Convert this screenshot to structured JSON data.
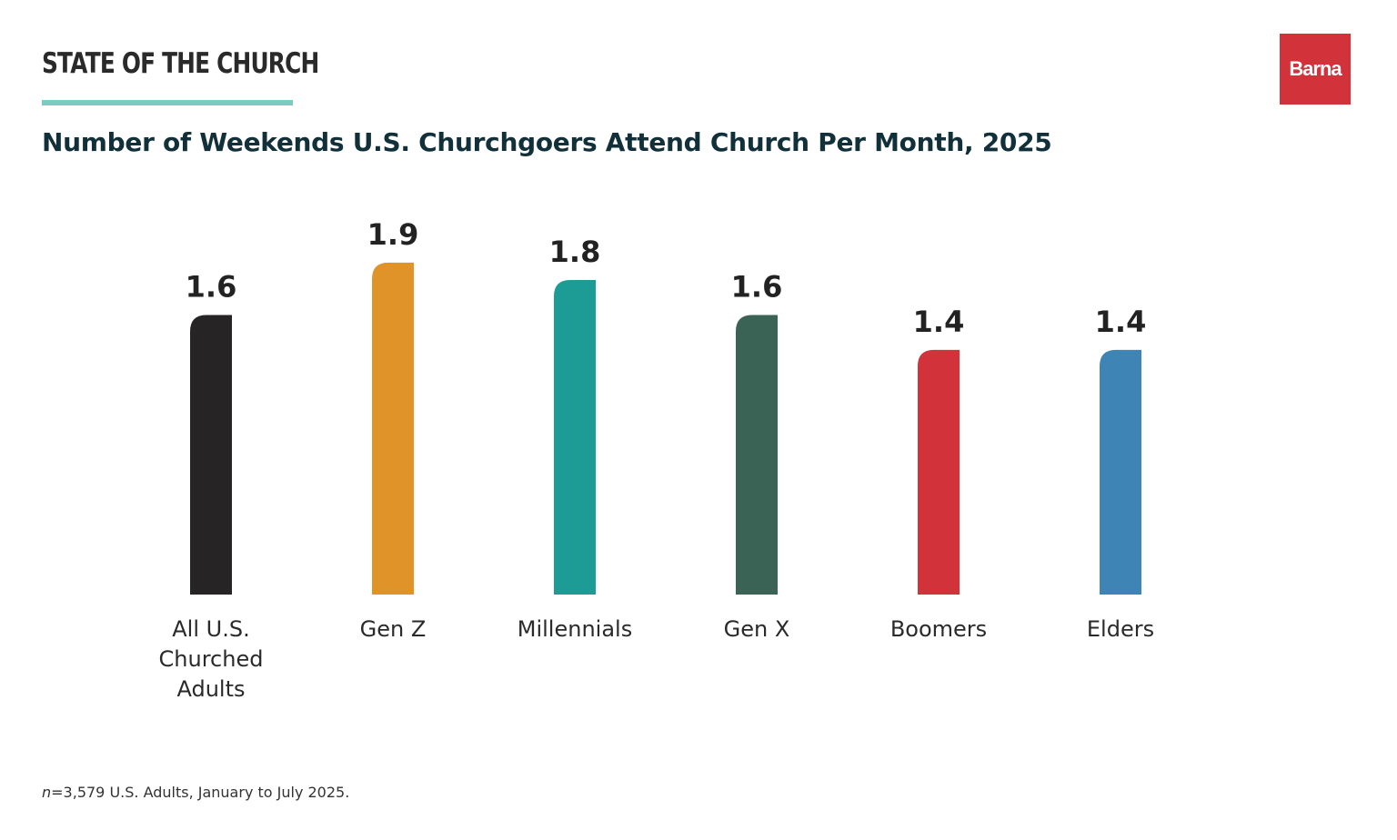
{
  "header": {
    "series_title": "STATE OF THE CHURCH",
    "logo_text": "Barna",
    "logo_color": "#d2323a",
    "rule_color": "#7dcbc0"
  },
  "footnote": {
    "n_symbol": "n",
    "text": "=3,579 U.S. Adults, January to July 2025."
  },
  "chart_data": {
    "type": "bar",
    "title": "Number of Weekends U.S. Churchgoers Attend Church Per Month, 2025",
    "xlabel": "",
    "ylabel": "",
    "ylim": [
      0,
      2.05
    ],
    "grid": false,
    "legend": "none",
    "categories": [
      [
        "All U.S.",
        "Churched",
        "Adults"
      ],
      [
        "Gen Z"
      ],
      [
        "Millennials"
      ],
      [
        "Gen X"
      ],
      [
        "Boomers"
      ],
      [
        "Elders"
      ]
    ],
    "values": [
      1.6,
      1.9,
      1.8,
      1.6,
      1.4,
      1.4
    ],
    "value_labels": [
      "1.6",
      "1.9",
      "1.8",
      "1.6",
      "1.4",
      "1.4"
    ],
    "colors": [
      "#272425",
      "#e09328",
      "#1c9c94",
      "#3a6355",
      "#d2323a",
      "#3e84b4"
    ]
  }
}
